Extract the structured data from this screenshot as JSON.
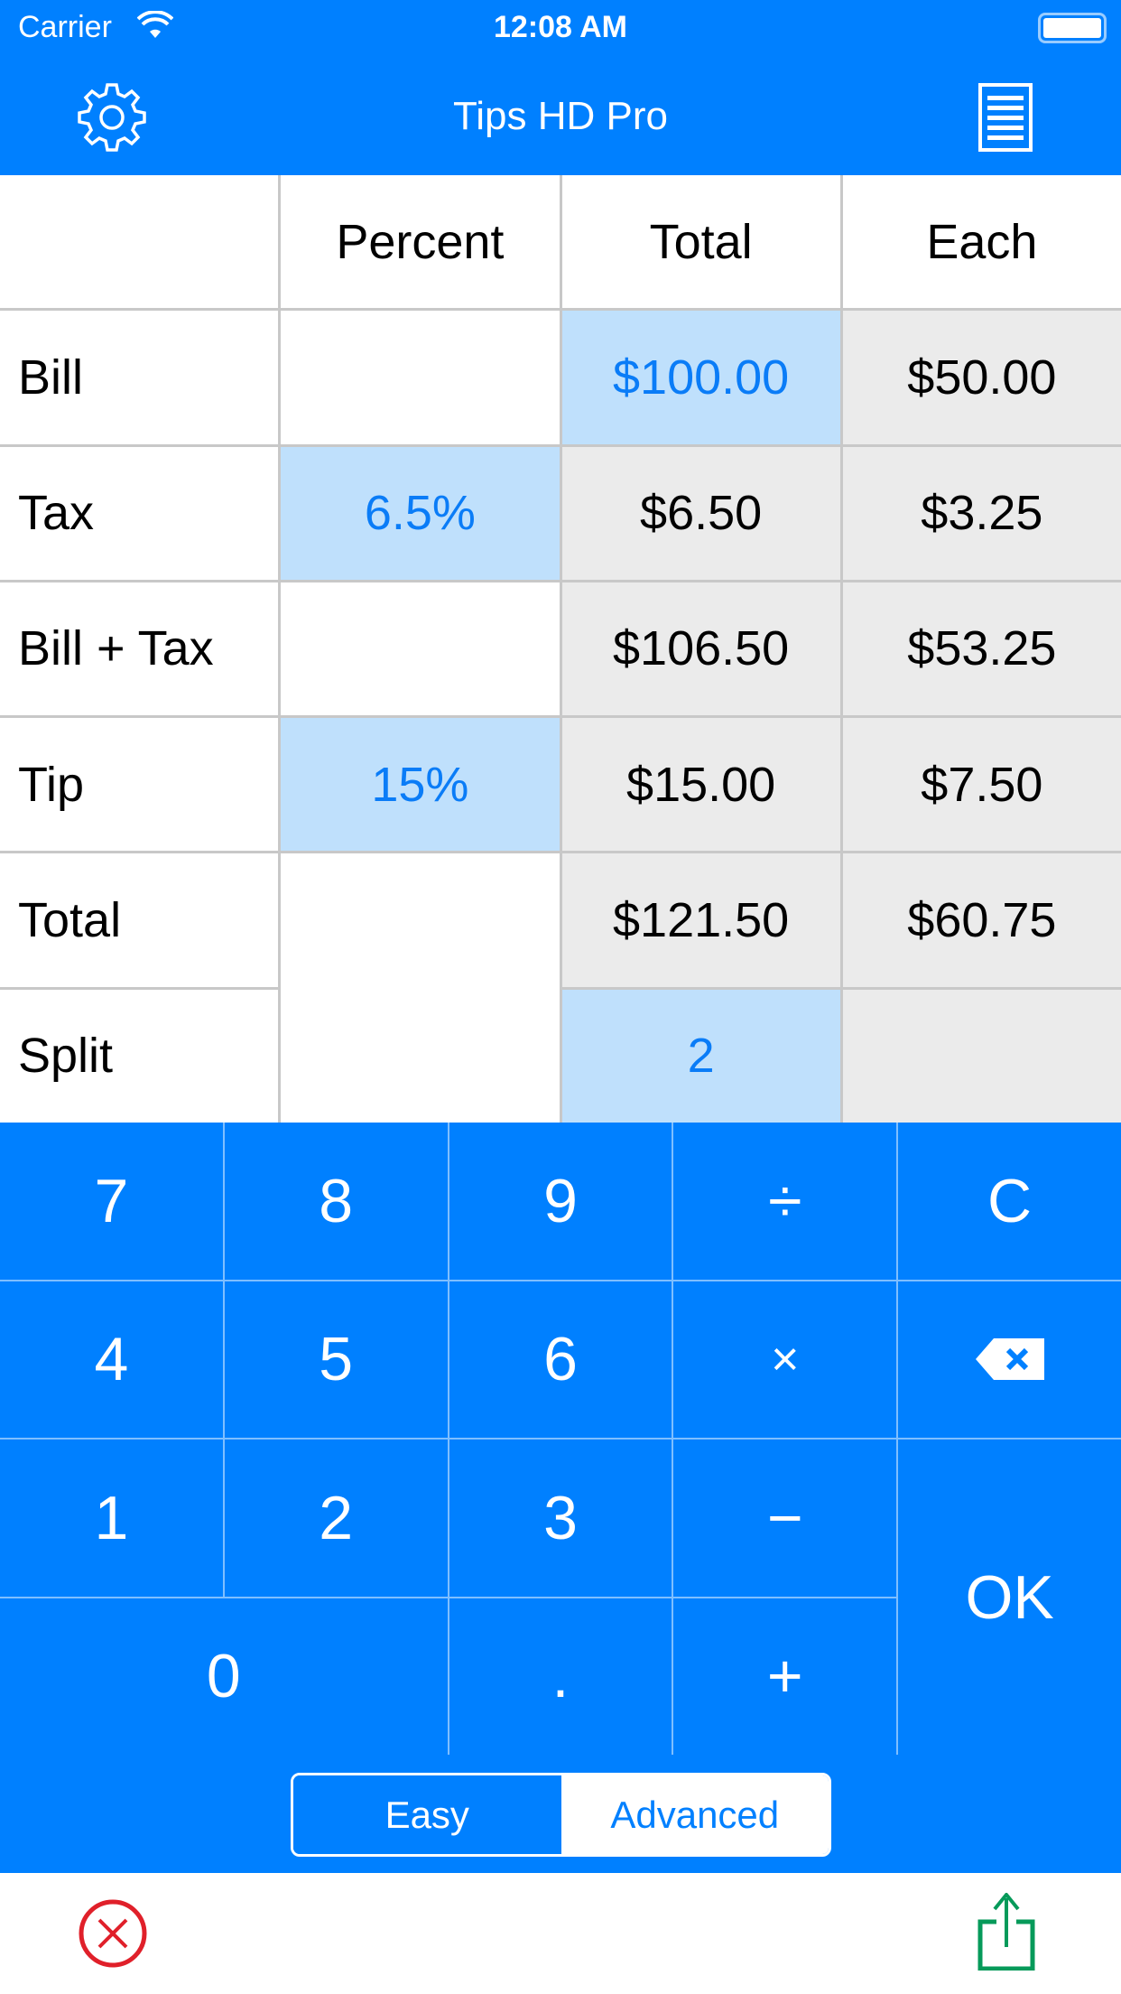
{
  "status_bar": {
    "carrier": "Carrier",
    "time": "12:08 AM"
  },
  "nav": {
    "title": "Tips HD Pro",
    "left_icon": "gear-icon",
    "right_icon": "list-icon"
  },
  "table": {
    "headers": [
      "",
      "Percent",
      "Total",
      "Each"
    ],
    "rows": [
      {
        "label": "Bill",
        "percent": "",
        "total": "$100.00",
        "each": "$50.00"
      },
      {
        "label": "Tax",
        "percent": "6.5%",
        "total": "$6.50",
        "each": "$3.25"
      },
      {
        "label": "Bill + Tax",
        "percent": "",
        "total": "$106.50",
        "each": "$53.25"
      },
      {
        "label": "Tip",
        "percent": "15%",
        "total": "$15.00",
        "each": "$7.50"
      },
      {
        "label": "Total",
        "percent": "",
        "total": "$121.50",
        "each": "$60.75"
      },
      {
        "label": "Split",
        "percent": "",
        "total": "2",
        "each": ""
      }
    ]
  },
  "keypad": {
    "k7": "7",
    "k8": "8",
    "k9": "9",
    "div": "÷",
    "clear": "C",
    "k4": "4",
    "k5": "5",
    "k6": "6",
    "mul": "×",
    "k1": "1",
    "k2": "2",
    "k3": "3",
    "minus": "−",
    "ok": "OK",
    "k0": "0",
    "dot": ".",
    "plus": "+"
  },
  "mode": {
    "easy": "Easy",
    "advanced": "Advanced",
    "selected": "Advanced"
  },
  "colors": {
    "accent": "#0080ff",
    "input_cell": "#bfe0fc",
    "calc_cell": "#ebebeb",
    "cancel": "#e0202a",
    "share": "#069a5a"
  }
}
